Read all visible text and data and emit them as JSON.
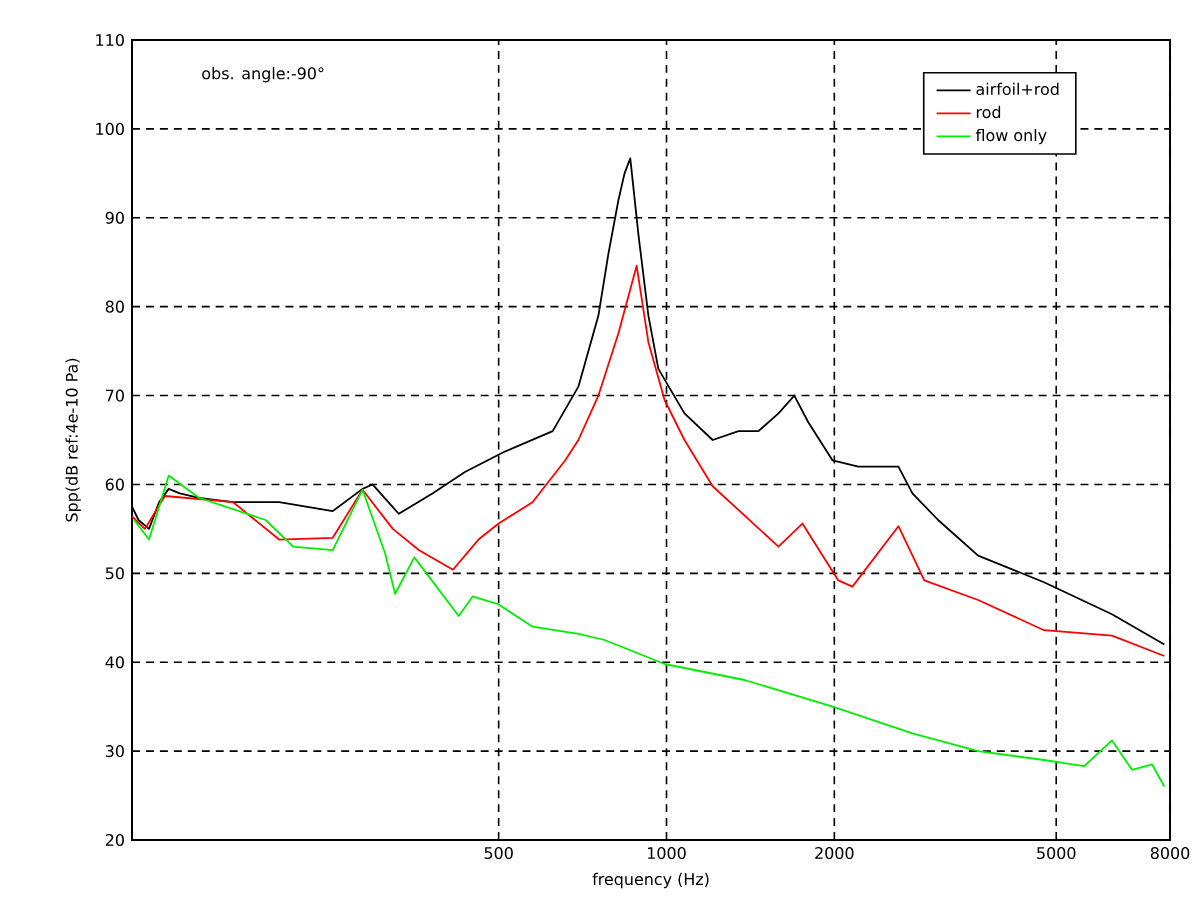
{
  "chart_data": {
    "type": "line",
    "xlabel": "frequency (Hz)",
    "ylabel": "Spp(dB ref:4e-10 Pa)",
    "annotations": [
      "obs. angle:-90°"
    ],
    "log": "x",
    "grid": true,
    "legend": "top right",
    "marker": "none",
    "line_style": "solid",
    "xlim": [
      110,
      8000
    ],
    "ylim": [
      20,
      110
    ],
    "xticks": [
      500,
      1000,
      2000,
      5000,
      8000
    ],
    "yticks": [
      20,
      30,
      40,
      50,
      60,
      70,
      80,
      90,
      100,
      110
    ],
    "series": [
      {
        "name": "airfoil+rod",
        "color": "#000000",
        "x": [
          110,
          113,
          118,
          123,
          128,
          134,
          145,
          167,
          202,
          252,
          285,
          297,
          331,
          381,
          435,
          513,
          625,
          695,
          755,
          787,
          820,
          841,
          861,
          891,
          928,
          967,
          1077,
          1210,
          1346,
          1462,
          1588,
          1695,
          1796,
          1986,
          2208,
          2606,
          2761,
          3070,
          3622,
          4754,
          6295,
          7816
        ],
        "values": [
          57.5,
          56,
          55,
          58,
          59.5,
          59,
          58.5,
          58,
          58,
          57,
          59.5,
          60,
          56.7,
          59,
          61.4,
          63.7,
          66,
          71,
          79,
          86,
          92,
          95,
          96.7,
          88,
          79,
          73,
          68,
          65,
          66,
          66,
          68,
          70,
          67,
          62.7,
          62,
          62,
          59,
          56,
          52,
          49,
          45.4,
          42
        ]
      },
      {
        "name": "rod",
        "color": "#ff0000",
        "x": [
          110,
          116,
          126,
          167,
          202,
          252,
          285,
          323,
          360,
          414,
          460,
          500,
          575,
          658,
          695,
          755,
          820,
          884,
          928,
          992,
          1077,
          1210,
          1588,
          1753,
          2033,
          2155,
          2606,
          2900,
          3622,
          4754,
          6295,
          7816
        ],
        "values": [
          56.4,
          55,
          58.7,
          58,
          53.8,
          54,
          59.4,
          55,
          52.6,
          50.4,
          53.8,
          55.6,
          58,
          62.7,
          65,
          70,
          77,
          84.6,
          76,
          69.5,
          65,
          59.8,
          53,
          55.6,
          49.2,
          48.5,
          55.3,
          49.2,
          47,
          43.6,
          43,
          40.7
        ]
      },
      {
        "name": "flow only",
        "color": "#00ee00",
        "x": [
          111,
          118,
          128,
          145,
          191,
          214,
          252,
          285,
          313,
          326,
          353,
          424,
          449,
          500,
          575,
          695,
          775,
          992,
          1380,
          1986,
          2761,
          3622,
          4754,
          5610,
          6295,
          6840,
          7430,
          7816
        ],
        "values": [
          56,
          53.8,
          61,
          58.5,
          56,
          53,
          52.6,
          59.4,
          52.2,
          47.7,
          51.8,
          45.2,
          47.4,
          46.5,
          44,
          43.2,
          42.5,
          39.8,
          38,
          35,
          32,
          30,
          29,
          28.3,
          31.2,
          27.9,
          28.5,
          26
        ]
      }
    ]
  }
}
